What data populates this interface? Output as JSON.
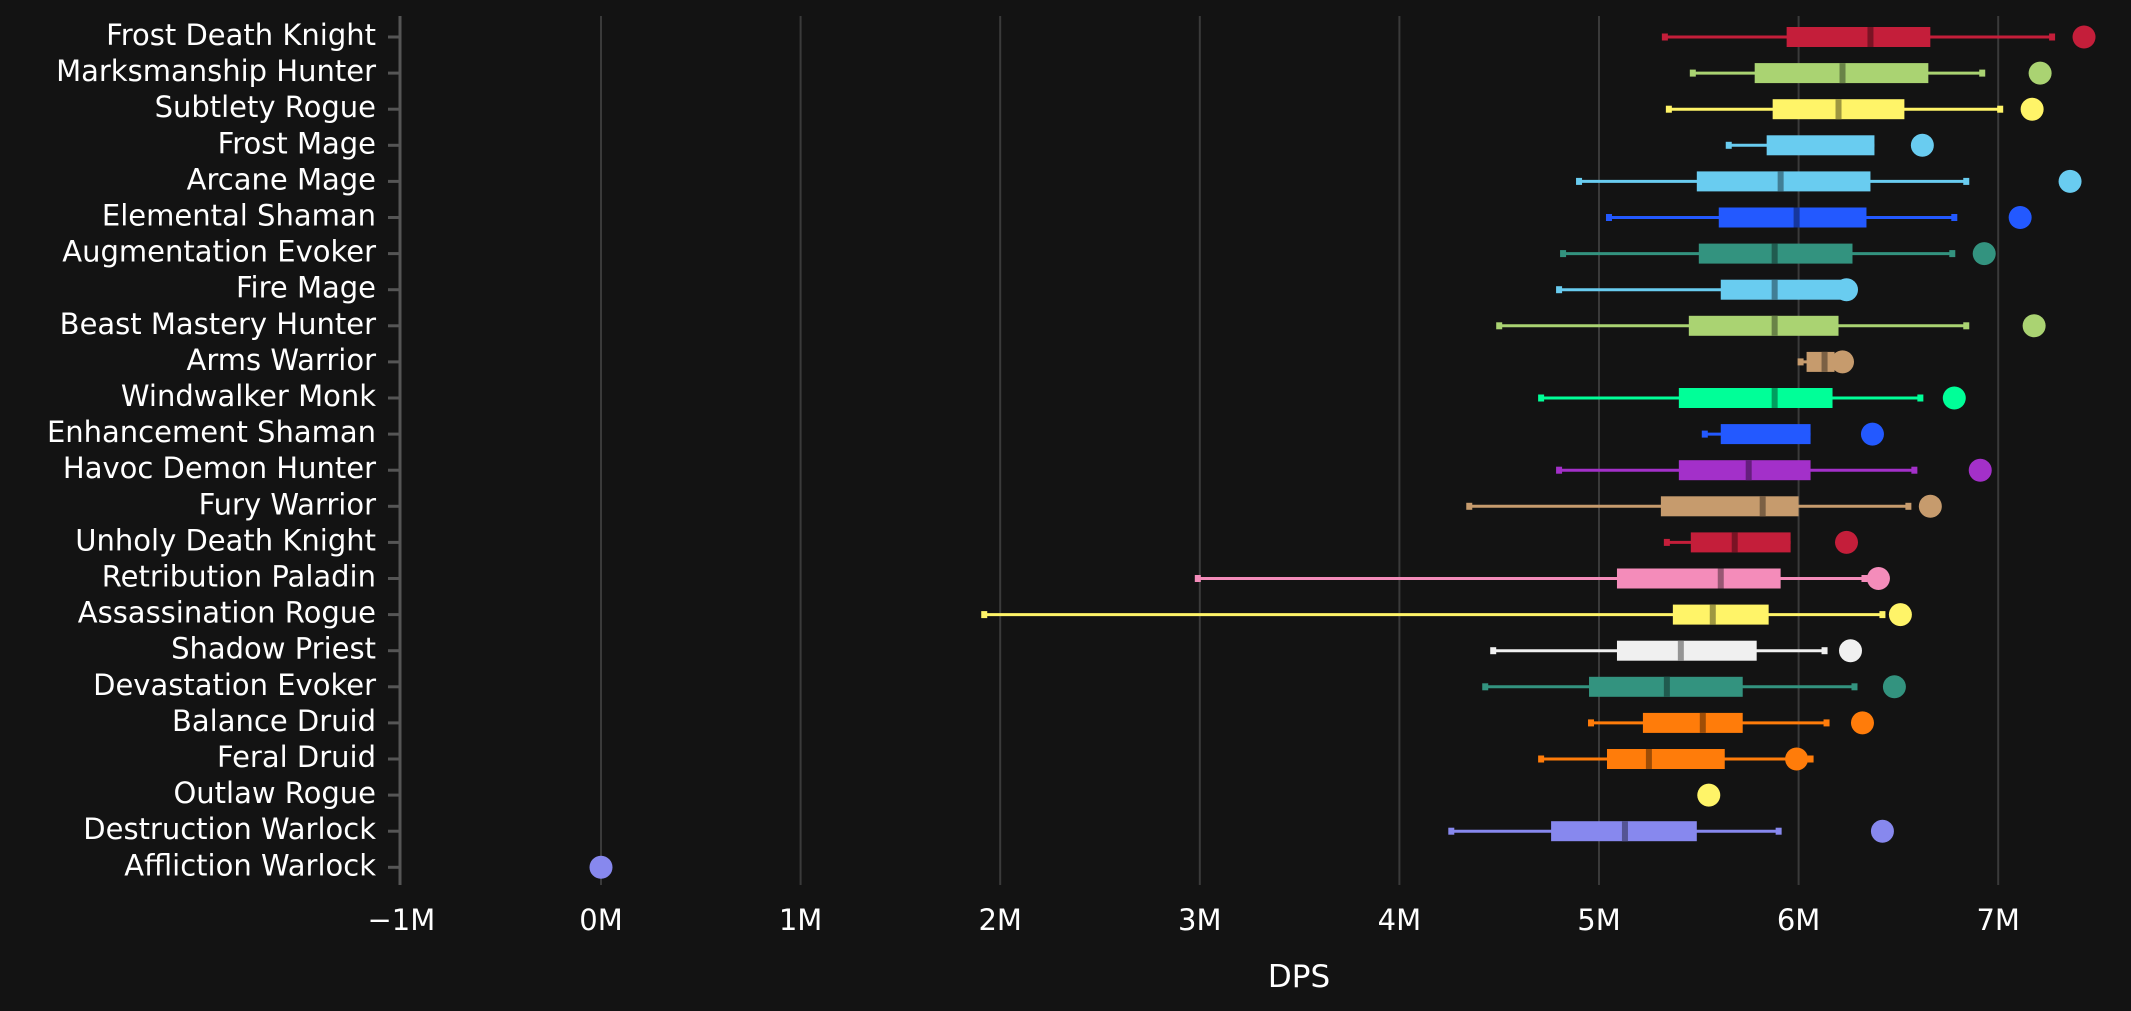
{
  "chart_data": {
    "type": "box",
    "title": "",
    "xlabel": "DPS",
    "ylabel": "",
    "xlim": [
      -1,
      7.55
    ],
    "x_ticks": [
      {
        "value": -1,
        "label": "−1M"
      },
      {
        "value": 0,
        "label": "0M"
      },
      {
        "value": 1,
        "label": "1M"
      },
      {
        "value": 2,
        "label": "2M"
      },
      {
        "value": 3,
        "label": "3M"
      },
      {
        "value": 4,
        "label": "4M"
      },
      {
        "value": 5,
        "label": "5M"
      },
      {
        "value": 6,
        "label": "6M"
      },
      {
        "value": 7,
        "label": "7M"
      }
    ],
    "units": "millions of DPS",
    "grid": true,
    "series": [
      {
        "name": "Frost Death Knight",
        "color": "#C41E3A",
        "min": 5.33,
        "q1": 5.94,
        "median": 6.36,
        "q3": 6.66,
        "max": 7.27,
        "top": 7.43
      },
      {
        "name": "Marksmanship Hunter",
        "color": "#AAD372",
        "min": 5.47,
        "q1": 5.78,
        "median": 6.22,
        "q3": 6.65,
        "max": 6.92,
        "top": 7.21
      },
      {
        "name": "Subtlety Rogue",
        "color": "#FFF468",
        "min": 5.35,
        "q1": 5.87,
        "median": 6.2,
        "q3": 6.53,
        "max": 7.01,
        "top": 7.17
      },
      {
        "name": "Frost Mage",
        "color": "#69CCF0",
        "min": 5.65,
        "q1": 5.84,
        "median": null,
        "q3": 6.38,
        "max": null,
        "top": 6.62
      },
      {
        "name": "Arcane Mage",
        "color": "#69CCF0",
        "min": 4.9,
        "q1": 5.49,
        "median": 5.91,
        "q3": 6.36,
        "max": 6.84,
        "top": 7.36
      },
      {
        "name": "Elemental Shaman",
        "color": "#2359FF",
        "min": 5.05,
        "q1": 5.6,
        "median": 5.99,
        "q3": 6.34,
        "max": 6.78,
        "top": 7.11
      },
      {
        "name": "Augmentation Evoker",
        "color": "#33937F",
        "min": 4.82,
        "q1": 5.5,
        "median": 5.88,
        "q3": 6.27,
        "max": 6.77,
        "top": 6.93
      },
      {
        "name": "Fire Mage",
        "color": "#69CCF0",
        "min": 4.8,
        "q1": 5.61,
        "median": 5.88,
        "q3": 6.22,
        "max": null,
        "top": 6.24
      },
      {
        "name": "Beast Mastery Hunter",
        "color": "#AAD372",
        "min": 4.5,
        "q1": 5.45,
        "median": 5.88,
        "q3": 6.2,
        "max": 6.84,
        "top": 7.18
      },
      {
        "name": "Arms Warrior",
        "color": "#C69B6D",
        "min": 6.01,
        "q1": 6.04,
        "median": 6.13,
        "q3": 6.18,
        "max": null,
        "top": 6.22
      },
      {
        "name": "Windwalker Monk",
        "color": "#00FF98",
        "min": 4.71,
        "q1": 5.4,
        "median": 5.88,
        "q3": 6.17,
        "max": 6.61,
        "top": 6.78
      },
      {
        "name": "Enhancement Shaman",
        "color": "#2359FF",
        "min": 5.53,
        "q1": 5.61,
        "median": null,
        "q3": 6.06,
        "max": null,
        "top": 6.37
      },
      {
        "name": "Havoc Demon Hunter",
        "color": "#A330C9",
        "min": 4.8,
        "q1": 5.4,
        "median": 5.75,
        "q3": 6.06,
        "max": 6.58,
        "top": 6.91
      },
      {
        "name": "Fury Warrior",
        "color": "#C69B6D",
        "min": 4.35,
        "q1": 5.31,
        "median": 5.82,
        "q3": 6.0,
        "max": 6.55,
        "top": 6.66
      },
      {
        "name": "Unholy Death Knight",
        "color": "#C41E3A",
        "min": 5.34,
        "q1": 5.46,
        "median": 5.68,
        "q3": 5.96,
        "max": null,
        "top": 6.24
      },
      {
        "name": "Retribution Paladin",
        "color": "#F48CBA",
        "min": 2.99,
        "q1": 5.09,
        "median": 5.61,
        "q3": 5.91,
        "max": 6.33,
        "top": 6.4
      },
      {
        "name": "Assassination Rogue",
        "color": "#FFF468",
        "min": 1.92,
        "q1": 5.37,
        "median": 5.57,
        "q3": 5.85,
        "max": 6.42,
        "top": 6.51
      },
      {
        "name": "Shadow Priest",
        "color": "#F0F0F0",
        "min": 4.47,
        "q1": 5.09,
        "median": 5.41,
        "q3": 5.79,
        "max": 6.13,
        "top": 6.26
      },
      {
        "name": "Devastation Evoker",
        "color": "#33937F",
        "min": 4.43,
        "q1": 4.95,
        "median": 5.34,
        "q3": 5.72,
        "max": 6.28,
        "top": 6.48
      },
      {
        "name": "Balance Druid",
        "color": "#FF7C0A",
        "min": 4.96,
        "q1": 5.22,
        "median": 5.52,
        "q3": 5.72,
        "max": 6.14,
        "top": 6.32
      },
      {
        "name": "Feral Druid",
        "color": "#FF7C0A",
        "min": 4.71,
        "q1": 5.04,
        "median": 5.25,
        "q3": 5.63,
        "max": 6.06,
        "top": 5.99
      },
      {
        "name": "Outlaw Rogue",
        "color": "#FFF468",
        "min": null,
        "q1": null,
        "median": null,
        "q3": null,
        "max": null,
        "top": 5.55
      },
      {
        "name": "Destruction Warlock",
        "color": "#8788EE",
        "min": 4.26,
        "q1": 4.76,
        "median": 5.13,
        "q3": 5.49,
        "max": 5.9,
        "top": 6.42
      },
      {
        "name": "Affliction Warlock",
        "color": "#8788EE",
        "min": null,
        "q1": null,
        "median": null,
        "q3": null,
        "max": null,
        "top": 0.0
      }
    ]
  }
}
